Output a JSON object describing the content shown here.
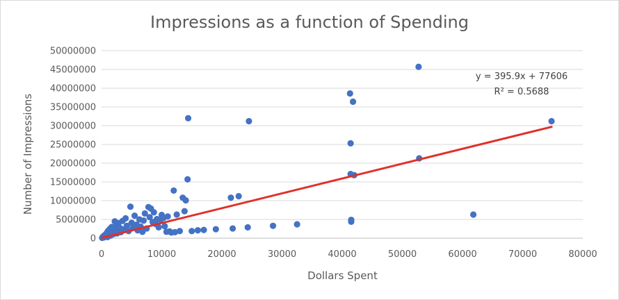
{
  "chart_data": {
    "type": "scatter",
    "title": "Impressions as a function of Spending",
    "xlabel": "Dollars Spent",
    "ylabel": "Number of Impressions",
    "xlim": [
      0,
      80000
    ],
    "ylim": [
      0,
      50000000
    ],
    "x_ticks": [
      "0",
      "10000",
      "20000",
      "30000",
      "40000",
      "50000",
      "60000",
      "70000",
      "80000"
    ],
    "y_ticks": [
      "0",
      "5000000",
      "10000000",
      "15000000",
      "20000000",
      "25000000",
      "30000000",
      "35000000",
      "40000000",
      "45000000",
      "50000000"
    ],
    "grid": "horizontal",
    "colors": {
      "points": "#4472c4",
      "trendline": "#e0302a",
      "grid": "#d9d9d9",
      "text": "#595959"
    },
    "trendline": {
      "slope": 395.9,
      "intercept": 77606,
      "equation": "y = 395.9x + 77606",
      "r_squared": "R² = 0.5688"
    },
    "series": [
      {
        "points": [
          [
            100,
            100000
          ],
          [
            200,
            300000
          ],
          [
            300,
            500000
          ],
          [
            400,
            200000
          ],
          [
            500,
            800000
          ],
          [
            600,
            400000
          ],
          [
            700,
            1000000
          ],
          [
            800,
            600000
          ],
          [
            900,
            1500000
          ],
          [
            1000,
            300000
          ],
          [
            1100,
            2000000
          ],
          [
            1200,
            900000
          ],
          [
            1300,
            1200000
          ],
          [
            1400,
            2500000
          ],
          [
            1500,
            700000
          ],
          [
            1700,
            3000000
          ],
          [
            1800,
            1800000
          ],
          [
            2000,
            1100000
          ],
          [
            2200,
            4500000
          ],
          [
            2300,
            2200000
          ],
          [
            2500,
            3500000
          ],
          [
            2600,
            1300000
          ],
          [
            2800,
            4000000
          ],
          [
            3000,
            2800000
          ],
          [
            3200,
            1600000
          ],
          [
            3500,
            4600000
          ],
          [
            3700,
            2400000
          ],
          [
            4000,
            5300000
          ],
          [
            4200,
            3300000
          ],
          [
            4500,
            1900000
          ],
          [
            4800,
            8400000
          ],
          [
            5000,
            4100000
          ],
          [
            5200,
            2700000
          ],
          [
            5500,
            6000000
          ],
          [
            5800,
            3600000
          ],
          [
            6000,
            2100000
          ],
          [
            6300,
            5000000
          ],
          [
            6500,
            3100000
          ],
          [
            6800,
            1700000
          ],
          [
            7000,
            4700000
          ],
          [
            7200,
            6600000
          ],
          [
            7500,
            2600000
          ],
          [
            7800,
            8300000
          ],
          [
            8000,
            5600000
          ],
          [
            8200,
            7900000
          ],
          [
            8500,
            4300000
          ],
          [
            8700,
            6900000
          ],
          [
            9000,
            3800000
          ],
          [
            9200,
            5100000
          ],
          [
            9500,
            2900000
          ],
          [
            9800,
            4900000
          ],
          [
            10000,
            6200000
          ],
          [
            10300,
            5400000
          ],
          [
            10500,
            3200000
          ],
          [
            10800,
            1700000
          ],
          [
            11000,
            5800000
          ],
          [
            11300,
            1800000
          ],
          [
            11600,
            1500000
          ],
          [
            12000,
            12700000
          ],
          [
            12200,
            1600000
          ],
          [
            12500,
            6300000
          ],
          [
            13000,
            1900000
          ],
          [
            13500,
            10800000
          ],
          [
            13800,
            7200000
          ],
          [
            14000,
            10100000
          ],
          [
            14300,
            15700000
          ],
          [
            14400,
            32000000
          ],
          [
            15000,
            1900000
          ],
          [
            16000,
            2100000
          ],
          [
            17000,
            2200000
          ],
          [
            19000,
            2400000
          ],
          [
            21500,
            10800000
          ],
          [
            21800,
            2600000
          ],
          [
            22800,
            11200000
          ],
          [
            24300,
            2900000
          ],
          [
            24500,
            31200000
          ],
          [
            28500,
            3300000
          ],
          [
            32500,
            3700000
          ],
          [
            41300,
            38600000
          ],
          [
            41400,
            25300000
          ],
          [
            41400,
            17100000
          ],
          [
            41500,
            4900000
          ],
          [
            41500,
            4400000
          ],
          [
            41800,
            36400000
          ],
          [
            42000,
            16800000
          ],
          [
            52700,
            45700000
          ],
          [
            52800,
            21300000
          ],
          [
            61800,
            6300000
          ],
          [
            74800,
            31200000
          ]
        ]
      }
    ]
  }
}
